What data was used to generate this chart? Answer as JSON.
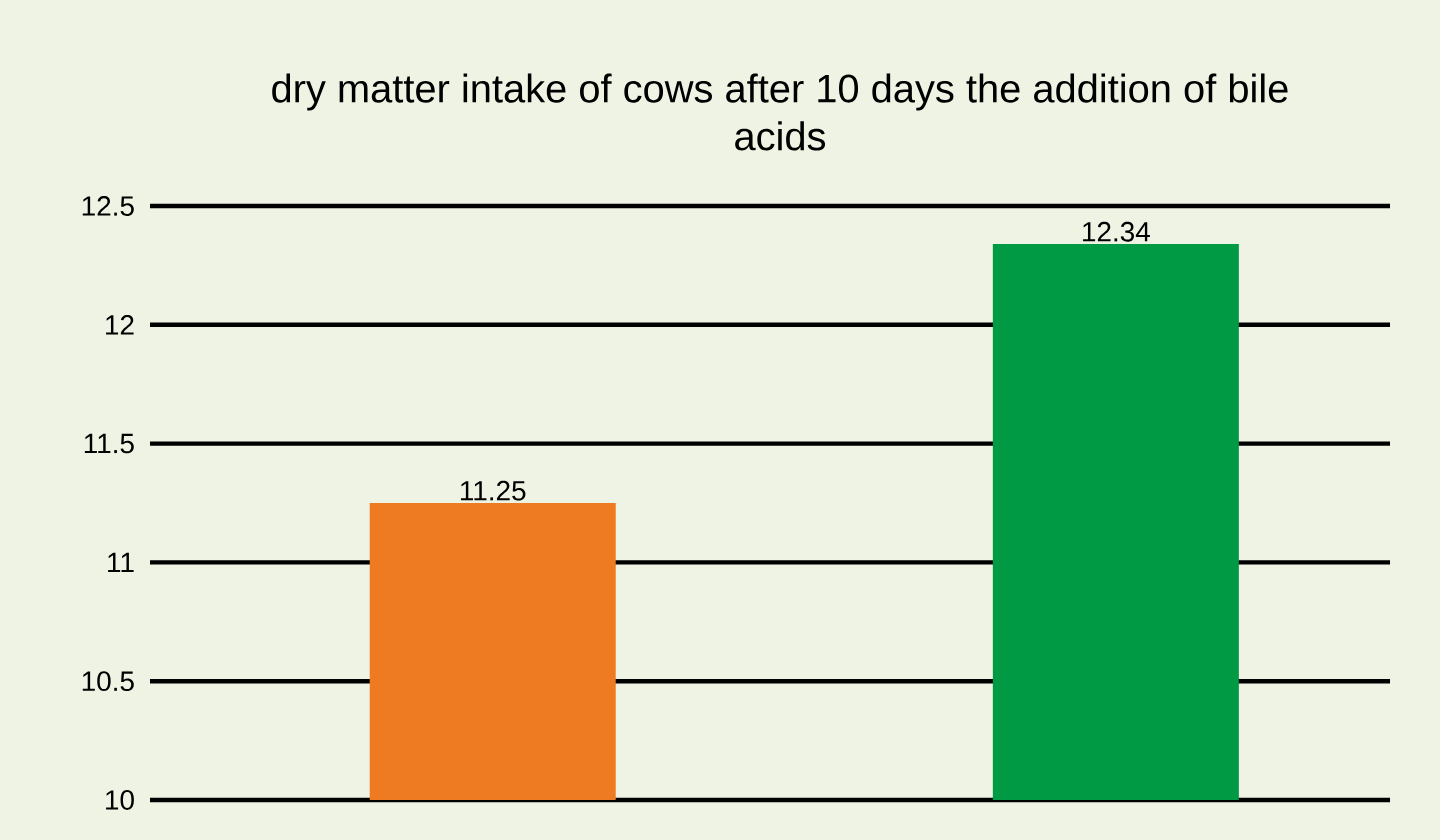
{
  "chart_data": {
    "type": "bar",
    "title": "dry matter intake of cows after 10 days the addition of bile acids",
    "categories": [
      null,
      null
    ],
    "values": [
      11.25,
      12.34
    ],
    "colors": [
      "#ee7b22",
      "#009a44"
    ],
    "ylim": [
      10,
      12.5
    ],
    "yticks": [
      10,
      10.5,
      11,
      11.5,
      12,
      12.5
    ],
    "grid": "y",
    "data_labels": true
  }
}
